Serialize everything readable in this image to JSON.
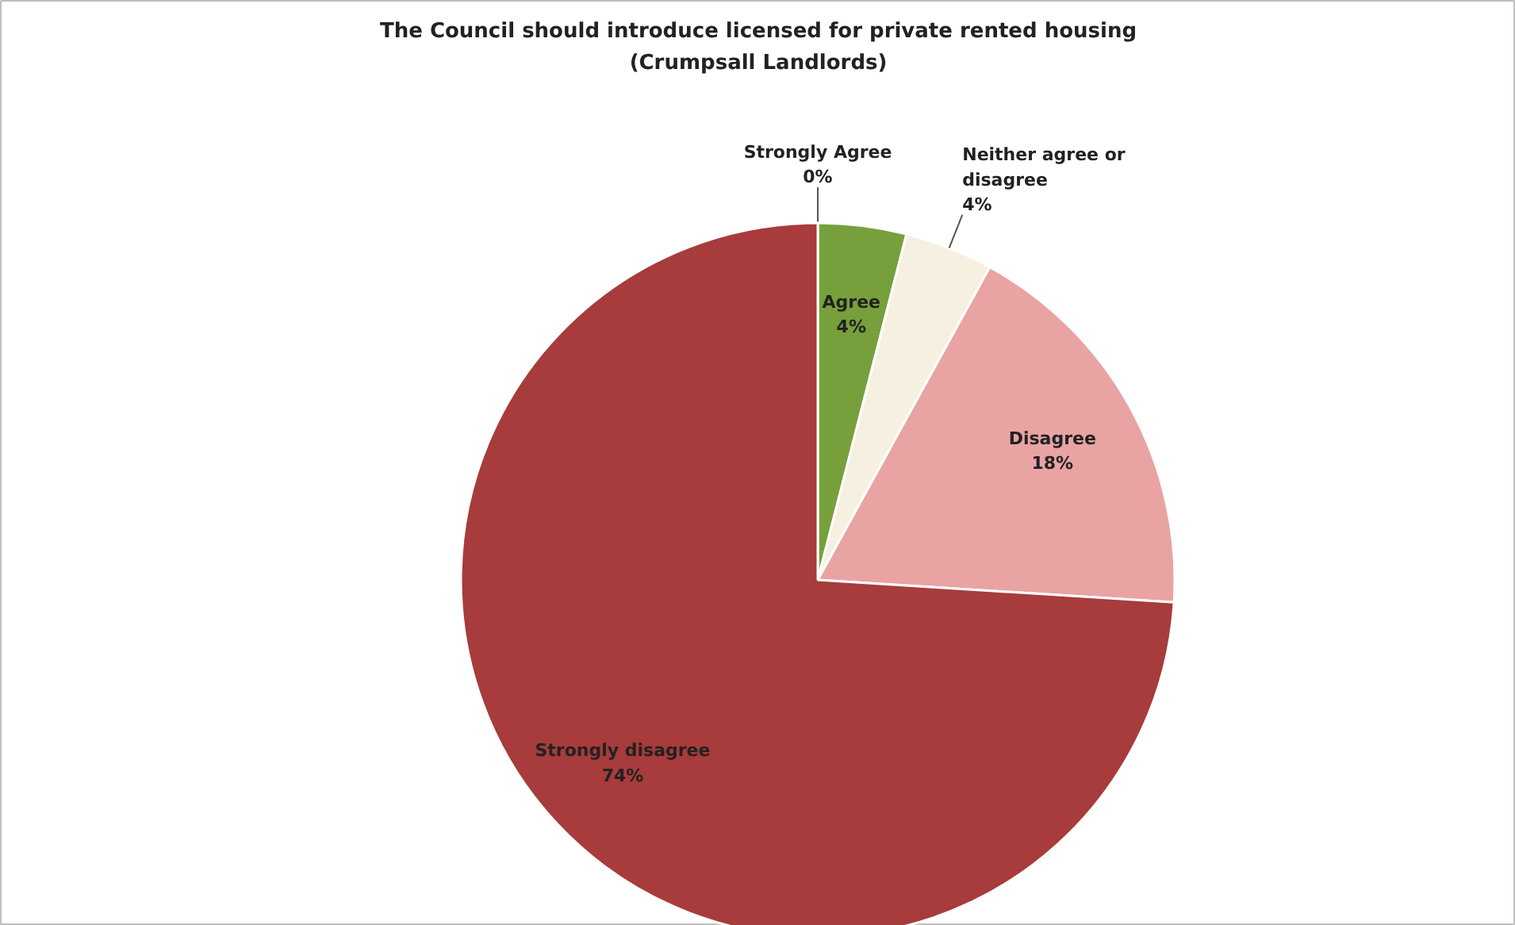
{
  "chart_data": {
    "type": "pie",
    "title": "The Council should introduce licensed for private rented housing",
    "subtitle": "(Crumpsall Landlords)",
    "categories": [
      "Strongly Agree",
      "Agree",
      "Neither agree or disagree",
      "Disagree",
      "Strongly disagree"
    ],
    "values": [
      0,
      4,
      4,
      18,
      74
    ],
    "colors": [
      "#4f7a28",
      "#77a03c",
      "#f6f0e0",
      "#e9a3a3",
      "#a83b3b"
    ],
    "value_labels": [
      "0%",
      "4%",
      "4%",
      "18%",
      "74%"
    ]
  }
}
